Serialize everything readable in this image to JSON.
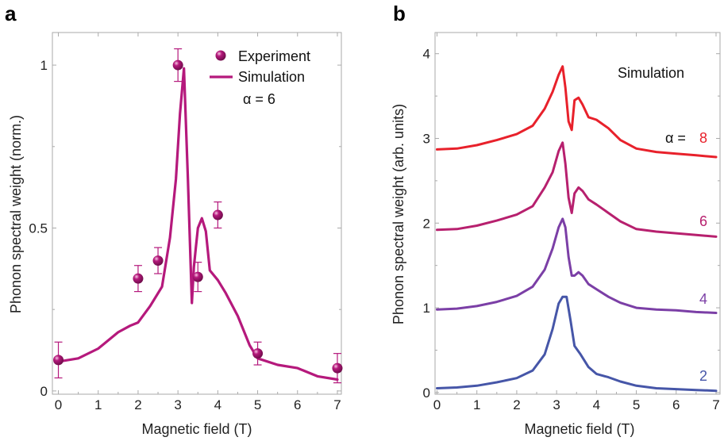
{
  "colors": {
    "magenta": "#B5197C",
    "alpha8": "#E8212B",
    "alpha6": "#B7206E",
    "alpha4": "#7B3FA6",
    "alpha2": "#4656A8",
    "axis": "#aaaaaa"
  },
  "chart_data": [
    {
      "type": "line",
      "panel_label": "a",
      "xlabel": "Magnetic field (T)",
      "ylabel": "Phonon spectral weight (norm.)",
      "xlim": [
        -0.15,
        7.1
      ],
      "ylim": [
        -0.01,
        1.1
      ],
      "x_ticks": [
        0,
        1,
        2,
        3,
        4,
        5,
        6,
        7
      ],
      "y_ticks": [
        0,
        0.5,
        1
      ],
      "y_tick_labels": [
        "0",
        "0.5",
        "1"
      ],
      "legend": {
        "position": "top-right",
        "experiment_label": "Experiment",
        "simulation_label": "Simulation",
        "alpha_label": "α = 6"
      },
      "experiment": {
        "name": "Experiment",
        "x": [
          0,
          2,
          2.5,
          3,
          3.5,
          4,
          5,
          7
        ],
        "y": [
          0.095,
          0.345,
          0.4,
          1.0,
          0.35,
          0.54,
          0.115,
          0.07
        ],
        "err": [
          0.055,
          0.04,
          0.04,
          0.05,
          0.045,
          0.04,
          0.035,
          0.045
        ]
      },
      "simulation": {
        "name": "Simulation",
        "x": [
          0,
          0.5,
          1,
          1.5,
          1.8,
          2.0,
          2.3,
          2.6,
          2.8,
          2.95,
          3.05,
          3.15,
          3.25,
          3.35,
          3.4,
          3.45,
          3.5,
          3.6,
          3.7,
          3.8,
          4.0,
          4.2,
          4.5,
          4.8,
          5.0,
          5.5,
          6.0,
          6.5,
          7.0
        ],
        "y": [
          0.09,
          0.1,
          0.13,
          0.18,
          0.2,
          0.21,
          0.26,
          0.32,
          0.47,
          0.65,
          0.85,
          0.99,
          0.65,
          0.27,
          0.38,
          0.44,
          0.5,
          0.53,
          0.49,
          0.37,
          0.34,
          0.3,
          0.23,
          0.14,
          0.1,
          0.08,
          0.07,
          0.045,
          0.035
        ]
      }
    },
    {
      "type": "line",
      "panel_label": "b",
      "title": "Simulation",
      "xlabel": "Magnetic field (T)",
      "ylabel": "Phonon spectral weight (arb. units)",
      "xlim": [
        -0.05,
        7.1
      ],
      "ylim": [
        -0.02,
        4.25
      ],
      "x_ticks": [
        0,
        1,
        2,
        3,
        4,
        5,
        6,
        7
      ],
      "y_ticks": [
        0,
        1,
        2,
        3,
        4
      ],
      "alpha_prefix": "α =",
      "series": [
        {
          "name": "8",
          "x": [
            0,
            0.5,
            1,
            1.5,
            2.0,
            2.4,
            2.7,
            2.9,
            3.05,
            3.15,
            3.22,
            3.3,
            3.38,
            3.45,
            3.55,
            3.65,
            3.8,
            4.0,
            4.3,
            4.6,
            5.0,
            5.5,
            6.0,
            6.5,
            7.0
          ],
          "y": [
            2.87,
            2.88,
            2.92,
            2.98,
            3.05,
            3.15,
            3.35,
            3.55,
            3.75,
            3.85,
            3.6,
            3.2,
            3.1,
            3.45,
            3.48,
            3.4,
            3.25,
            3.22,
            3.12,
            2.98,
            2.88,
            2.84,
            2.82,
            2.8,
            2.78
          ]
        },
        {
          "name": "6",
          "x": [
            0,
            0.5,
            1,
            1.5,
            2.0,
            2.4,
            2.7,
            2.9,
            3.05,
            3.15,
            3.22,
            3.3,
            3.38,
            3.45,
            3.55,
            3.65,
            3.8,
            4.0,
            4.3,
            4.6,
            5.0,
            5.5,
            6.0,
            6.5,
            7.0
          ],
          "y": [
            1.92,
            1.93,
            1.97,
            2.03,
            2.1,
            2.2,
            2.42,
            2.6,
            2.85,
            2.95,
            2.7,
            2.3,
            2.12,
            2.35,
            2.42,
            2.38,
            2.28,
            2.22,
            2.12,
            2.02,
            1.93,
            1.9,
            1.88,
            1.86,
            1.84
          ]
        },
        {
          "name": "4",
          "x": [
            0,
            0.5,
            1,
            1.5,
            2.0,
            2.4,
            2.7,
            2.9,
            3.05,
            3.15,
            3.22,
            3.3,
            3.38,
            3.45,
            3.55,
            3.65,
            3.8,
            4.0,
            4.3,
            4.6,
            5.0,
            5.5,
            6.0,
            6.5,
            7.0
          ],
          "y": [
            0.98,
            0.99,
            1.02,
            1.07,
            1.14,
            1.25,
            1.45,
            1.7,
            1.95,
            2.05,
            1.95,
            1.6,
            1.38,
            1.38,
            1.42,
            1.38,
            1.28,
            1.22,
            1.13,
            1.06,
            1.0,
            0.98,
            0.97,
            0.95,
            0.94
          ]
        },
        {
          "name": "2",
          "x": [
            0,
            0.5,
            1,
            1.5,
            2.0,
            2.4,
            2.7,
            2.9,
            3.05,
            3.15,
            3.25,
            3.35,
            3.45,
            3.6,
            3.8,
            4.0,
            4.3,
            4.6,
            5.0,
            5.5,
            6.0,
            6.5,
            7.0
          ],
          "y": [
            0.05,
            0.06,
            0.08,
            0.12,
            0.17,
            0.26,
            0.45,
            0.75,
            1.05,
            1.13,
            1.13,
            0.85,
            0.55,
            0.45,
            0.3,
            0.22,
            0.18,
            0.13,
            0.08,
            0.05,
            0.04,
            0.03,
            0.02
          ]
        }
      ]
    }
  ]
}
